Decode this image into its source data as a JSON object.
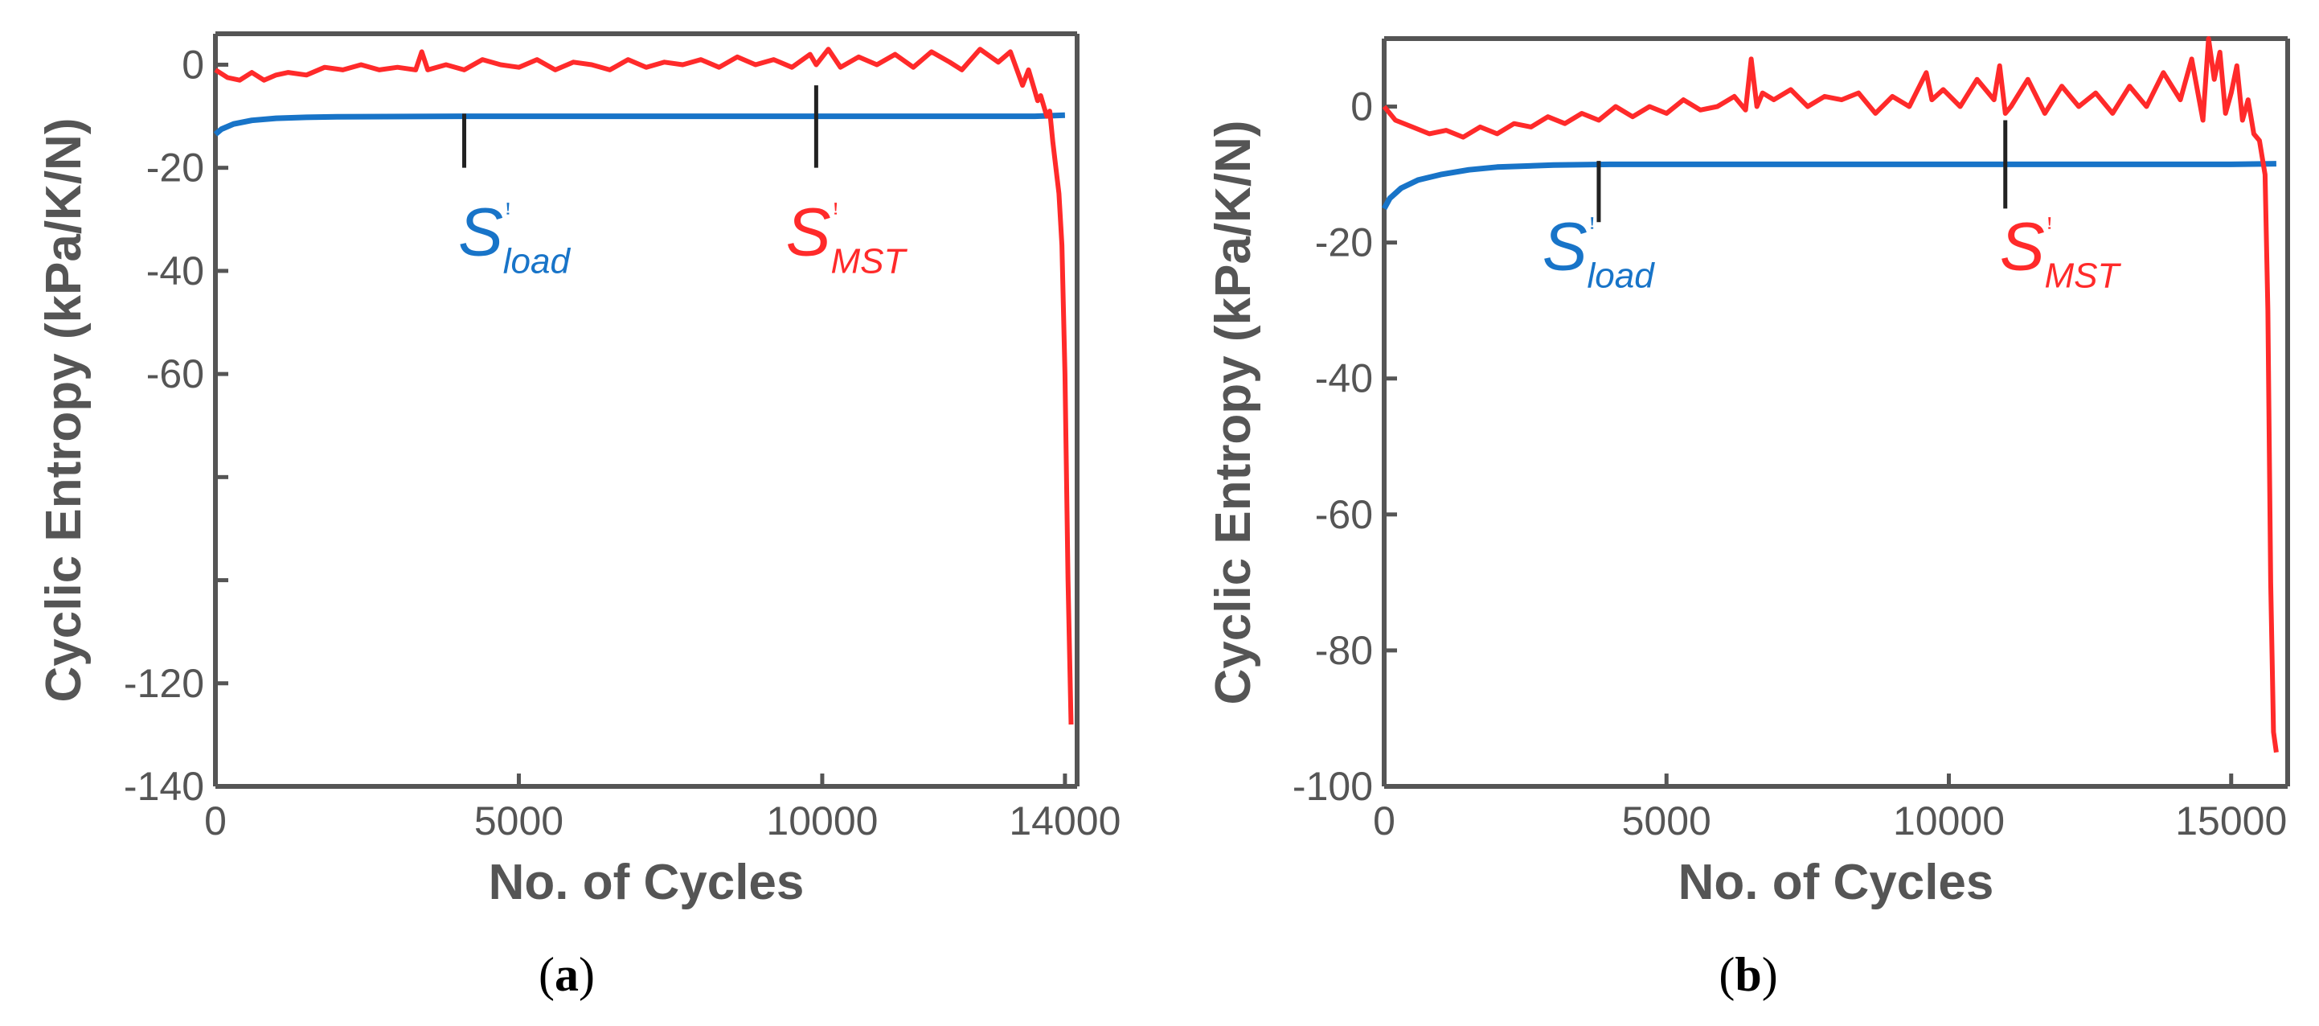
{
  "colors": {
    "load": "#1874c8",
    "mst": "#ff2a2a",
    "axis": "#555555"
  },
  "chart_data": [
    {
      "panel": "(a)",
      "panel_letter": "a",
      "type": "line",
      "xlabel": "No. of Cycles",
      "ylabel": "Cyclic Entropy (kPa/K/N)",
      "xlim": [
        0,
        14200
      ],
      "ylim": [
        -140,
        6
      ],
      "xticks": [
        0,
        5000,
        10000,
        14000
      ],
      "xtick_labels": [
        "0",
        "5000",
        "10000",
        "14000"
      ],
      "yticks": [
        0,
        -20,
        -40,
        -60,
        -80,
        -100,
        -120,
        -140
      ],
      "ytick_labels": [
        "0",
        "-20",
        "-40",
        "-60",
        "",
        "",
        "-120",
        "-140"
      ],
      "series": [
        {
          "name": "S_load",
          "label_main": "S",
          "label_sub": "load",
          "label_mark": "ꜝ",
          "color_key": "load",
          "x": [
            0,
            100,
            300,
            600,
            1000,
            1500,
            2000,
            4000,
            8000,
            12000,
            13500,
            14000
          ],
          "y": [
            -13.5,
            -12.5,
            -11.5,
            -10.8,
            -10.4,
            -10.2,
            -10.1,
            -10,
            -10,
            -10,
            -10,
            -9.8
          ],
          "annotation": {
            "label_x": 4000,
            "label_y": -37,
            "line_from": [
              4100,
              -9.5
            ],
            "line_to": [
              4100,
              -20
            ]
          }
        },
        {
          "name": "S_MST",
          "label_main": "S",
          "label_sub": "MST",
          "label_mark": "ꜝ",
          "color_key": "mst",
          "x": [
            0,
            200,
            400,
            600,
            800,
            1000,
            1200,
            1500,
            1800,
            2100,
            2400,
            2700,
            3000,
            3300,
            3400,
            3500,
            3800,
            4100,
            4400,
            4700,
            5000,
            5300,
            5600,
            5900,
            6200,
            6500,
            6800,
            7100,
            7400,
            7700,
            8000,
            8300,
            8600,
            8900,
            9200,
            9500,
            9800,
            9900,
            10100,
            10300,
            10600,
            10900,
            11200,
            11500,
            11800,
            12100,
            12300,
            12600,
            12900,
            13100,
            13300,
            13400,
            13500,
            13550,
            13600,
            13650,
            13700,
            13750,
            13800,
            13850,
            13900,
            13950,
            14000,
            14050,
            14100
          ],
          "y": [
            -1,
            -2.5,
            -3,
            -1.5,
            -3,
            -2,
            -1.5,
            -2,
            -0.5,
            -1,
            0,
            -1,
            -0.5,
            -1,
            2.5,
            -1,
            0,
            -1,
            1,
            0,
            -0.5,
            1,
            -1,
            0.5,
            0,
            -1,
            1,
            -0.5,
            0.5,
            0,
            1,
            -0.5,
            1.5,
            0,
            1,
            -0.5,
            2,
            0,
            3,
            -0.5,
            1.5,
            0,
            2,
            -0.5,
            2.5,
            0.5,
            -1,
            3,
            0.5,
            2.5,
            -4,
            -1,
            -5,
            -7,
            -6,
            -8,
            -10,
            -9,
            -15,
            -20,
            -25,
            -35,
            -60,
            -100,
            -128
          ],
          "annotation": {
            "label_x": 9400,
            "label_y": -37,
            "line_from": [
              9900,
              -4
            ],
            "line_to": [
              9900,
              -20
            ]
          }
        }
      ]
    },
    {
      "panel": "(b)",
      "panel_letter": "b",
      "type": "line",
      "xlabel": "No. of Cycles",
      "ylabel": "Cyclic Entropy (kPa/K/N)",
      "xlim": [
        0,
        16000
      ],
      "ylim": [
        -100,
        10
      ],
      "xticks": [
        0,
        5000,
        10000,
        15000
      ],
      "xtick_labels": [
        "0",
        "5000",
        "10000",
        "15000"
      ],
      "yticks": [
        0,
        -20,
        -40,
        -60,
        -80,
        -100
      ],
      "ytick_labels": [
        "0",
        "-20",
        "-40",
        "-60",
        "-80",
        "-100"
      ],
      "series": [
        {
          "name": "S_load",
          "label_main": "S",
          "label_sub": "load",
          "label_mark": "ꜝ",
          "color_key": "load",
          "x": [
            0,
            100,
            300,
            600,
            1000,
            1500,
            2000,
            3000,
            4000,
            8000,
            12000,
            15000,
            15800
          ],
          "y": [
            -15,
            -13.5,
            -12,
            -10.8,
            -10,
            -9.3,
            -8.9,
            -8.6,
            -8.5,
            -8.5,
            -8.5,
            -8.5,
            -8.4
          ],
          "annotation": {
            "label_x": 2800,
            "label_y": -24,
            "line_from": [
              3800,
              -8
            ],
            "line_to": [
              3800,
              -17
            ]
          }
        },
        {
          "name": "S_MST",
          "label_main": "S",
          "label_sub": "MST",
          "label_mark": "ꜝ",
          "color_key": "mst",
          "x": [
            0,
            200,
            500,
            800,
            1100,
            1400,
            1700,
            2000,
            2300,
            2600,
            2900,
            3200,
            3500,
            3800,
            4100,
            4400,
            4700,
            5000,
            5300,
            5600,
            5900,
            6200,
            6400,
            6500,
            6600,
            6700,
            6900,
            7200,
            7500,
            7800,
            8100,
            8400,
            8700,
            9000,
            9300,
            9600,
            9700,
            9900,
            10200,
            10500,
            10800,
            10900,
            11000,
            11100,
            11400,
            11700,
            12000,
            12300,
            12600,
            12900,
            13200,
            13500,
            13800,
            14100,
            14300,
            14500,
            14600,
            14700,
            14800,
            14900,
            15000,
            15100,
            15200,
            15300,
            15400,
            15500,
            15600,
            15650,
            15700,
            15750,
            15800
          ],
          "y": [
            0,
            -2,
            -3,
            -4,
            -3.5,
            -4.5,
            -3,
            -4,
            -2.5,
            -3,
            -1.5,
            -2.5,
            -1,
            -2,
            0,
            -1.5,
            0,
            -1,
            1,
            -0.5,
            0,
            1.5,
            -0.5,
            7,
            0,
            2,
            1,
            2.5,
            0,
            1.5,
            1,
            2,
            -1,
            1.5,
            0,
            5,
            1,
            2.5,
            0,
            4,
            1,
            6,
            -1,
            0,
            4,
            -1,
            3,
            0,
            2,
            -1,
            3,
            0,
            5,
            1,
            7,
            -2,
            10,
            4,
            8,
            -1,
            2,
            6,
            -2,
            1,
            -4,
            -5,
            -10,
            -30,
            -70,
            -92,
            -95
          ],
          "annotation": {
            "label_x": 10900,
            "label_y": -24,
            "line_from": [
              11000,
              -2
            ],
            "line_to": [
              11000,
              -15
            ]
          }
        }
      ]
    }
  ]
}
